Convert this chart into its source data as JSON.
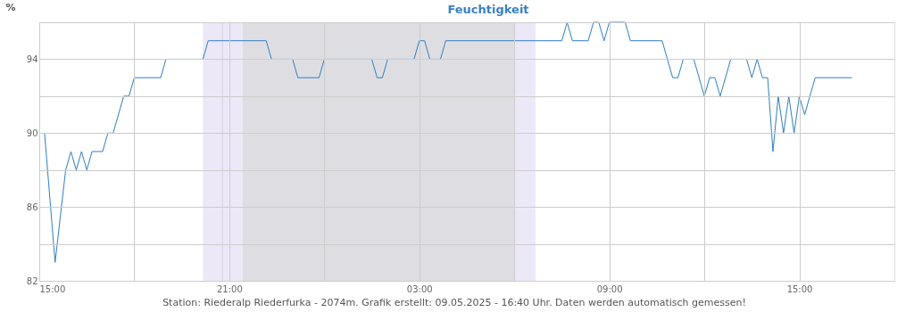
{
  "chart_data": {
    "type": "line",
    "title": "Feuchtigkeit",
    "ylabel": "%",
    "x": [
      "2025-05-08T15:10",
      "2025-05-08T15:30",
      "2025-05-08T15:50",
      "2025-05-08T16:00",
      "2025-05-08T16:10",
      "2025-05-08T16:20",
      "2025-05-08T16:30",
      "2025-05-08T16:40",
      "2025-05-08T17:00",
      "2025-05-08T17:10",
      "2025-05-08T17:20",
      "2025-05-08T17:40",
      "2025-05-08T17:50",
      "2025-05-08T18:00",
      "2025-05-08T18:50",
      "2025-05-08T19:00",
      "2025-05-08T20:10",
      "2025-05-08T20:20",
      "2025-05-08T22:10",
      "2025-05-08T22:20",
      "2025-05-08T23:00",
      "2025-05-08T23:10",
      "2025-05-08T23:50",
      "2025-05-09T00:00",
      "2025-05-09T01:30",
      "2025-05-09T01:40",
      "2025-05-09T01:50",
      "2025-05-09T02:00",
      "2025-05-09T02:50",
      "2025-05-09T03:00",
      "2025-05-09T03:10",
      "2025-05-09T03:20",
      "2025-05-09T03:40",
      "2025-05-09T03:50",
      "2025-05-09T07:30",
      "2025-05-09T07:40",
      "2025-05-09T07:50",
      "2025-05-09T08:20",
      "2025-05-09T08:30",
      "2025-05-09T08:40",
      "2025-05-09T08:50",
      "2025-05-09T09:00",
      "2025-05-09T09:30",
      "2025-05-09T09:40",
      "2025-05-09T10:40",
      "2025-05-09T11:00",
      "2025-05-09T11:10",
      "2025-05-09T11:20",
      "2025-05-09T11:40",
      "2025-05-09T12:00",
      "2025-05-09T12:10",
      "2025-05-09T12:20",
      "2025-05-09T12:30",
      "2025-05-09T12:50",
      "2025-05-09T13:20",
      "2025-05-09T13:30",
      "2025-05-09T13:40",
      "2025-05-09T13:50",
      "2025-05-09T14:00",
      "2025-05-09T14:10",
      "2025-05-09T14:20",
      "2025-05-09T14:30",
      "2025-05-09T14:40",
      "2025-05-09T14:50",
      "2025-05-09T15:00",
      "2025-05-09T15:10",
      "2025-05-09T15:30",
      "2025-05-09T16:40"
    ],
    "series": [
      {
        "color": "#2f7ec1",
        "values": [
          90,
          83,
          88,
          89,
          88,
          89,
          88,
          89,
          89,
          90,
          90,
          92,
          92,
          93,
          93,
          94,
          94,
          95,
          95,
          94,
          94,
          93,
          93,
          94,
          94,
          93,
          93,
          94,
          94,
          95,
          95,
          94,
          94,
          95,
          95,
          96,
          95,
          95,
          96,
          96,
          95,
          96,
          96,
          95,
          95,
          93,
          93,
          94,
          94,
          92,
          93,
          93,
          92,
          94,
          94,
          93,
          94,
          93,
          93,
          89,
          92,
          90,
          92,
          90,
          92,
          91,
          93,
          93
        ]
      }
    ],
    "xlim": [
      "2025-05-08T15:00",
      "2025-05-09T18:00"
    ],
    "xticks": [
      {
        "value": "2025-05-08T15:00",
        "label": "15:00"
      },
      {
        "value": "2025-05-08T18:00",
        "label": null
      },
      {
        "value": "2025-05-08T21:00",
        "label": "21:00"
      },
      {
        "value": "2025-05-09T00:00",
        "label": null
      },
      {
        "value": "2025-05-09T03:00",
        "label": "03:00"
      },
      {
        "value": "2025-05-09T06:00",
        "label": null
      },
      {
        "value": "2025-05-09T09:00",
        "label": "09:00"
      },
      {
        "value": "2025-05-09T12:00",
        "label": null
      },
      {
        "value": "2025-05-09T15:00",
        "label": "15:00"
      }
    ],
    "ylim": [
      82,
      96
    ],
    "yticks": [
      82,
      {
        "value": 84,
        "label": null
      },
      86,
      {
        "value": 88,
        "label": null
      },
      90,
      {
        "value": 92,
        "label": null
      },
      94,
      {
        "value": 96,
        "label": null
      }
    ],
    "grid": true,
    "bands": [
      {
        "axis": "x",
        "from": "2025-05-08T20:10",
        "to": "2025-05-08T21:25",
        "color": "#ece8f7"
      },
      {
        "axis": "x",
        "from": "2025-05-08T21:25",
        "to": "2025-05-09T06:00",
        "color": "#dedee2"
      },
      {
        "axis": "x",
        "from": "2025-05-09T06:00",
        "to": "2025-05-09T06:40",
        "color": "#ece8f7"
      }
    ],
    "ref_lines": [
      {
        "axis": "x",
        "value": "2025-05-08T20:47",
        "color": "#d4d2dc"
      }
    ],
    "annotations": [
      "Station: Riederalp Riederfurka - 2074m. Grafik erstellt: 09.05.2025 - 16:40 Uhr. Daten werden automatisch gemessen!"
    ]
  }
}
